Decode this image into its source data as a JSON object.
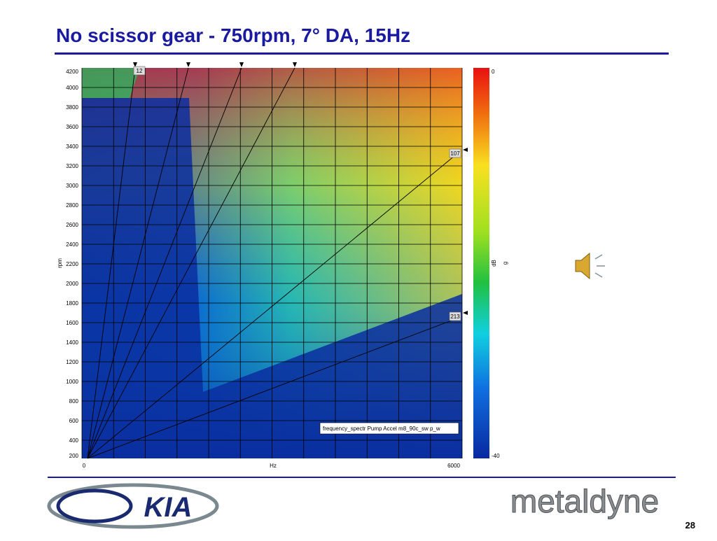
{
  "header": {
    "title": "No scissor gear - 750rpm, 7° DA, 15Hz"
  },
  "plot": {
    "y_label": "rpm",
    "x_label": "Hz",
    "y_ticks": [
      "4200",
      "4000",
      "3800",
      "3600",
      "3400",
      "3200",
      "3000",
      "2800",
      "2600",
      "2400",
      "2200",
      "2000",
      "1800",
      "1600",
      "1400",
      "1200",
      "1000",
      "800",
      "600",
      "400",
      "200"
    ],
    "x_ticks": [
      "0",
      "6000"
    ],
    "order_markers": [
      "12",
      "107",
      "213"
    ],
    "colorbar": {
      "top": "0",
      "bottom": "-40",
      "unit": "dB",
      "quantity": "g"
    },
    "legend": "frequency_spectr Pump Accel  m8_90c_sw p_w"
  },
  "footer": {
    "left_logo": "KIA",
    "right_logo": "metaldyne",
    "page": "28"
  }
}
